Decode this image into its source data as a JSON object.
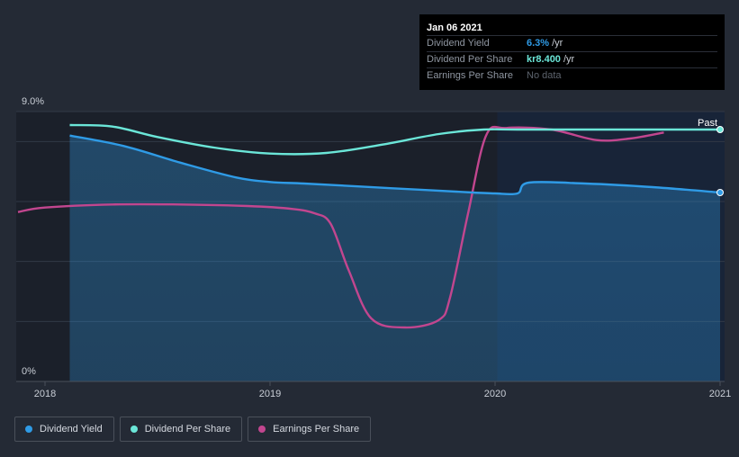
{
  "chart_data": {
    "type": "line",
    "y_axis": {
      "top_label": "9.0%",
      "bottom_label": "0%",
      "ylim": [
        0,
        9.0
      ]
    },
    "x_axis": {
      "tick_labels": [
        "2018",
        "2019",
        "2020",
        "2021"
      ],
      "xlim": [
        2017.88,
        2021.0
      ]
    },
    "past_label": "Past",
    "past_region_start": 2020.01,
    "series": [
      {
        "name": "Dividend Yield",
        "color": "#2f9be6",
        "area": true,
        "unit": "%",
        "points": [
          [
            2018.11,
            8.2
          ],
          [
            2018.35,
            7.85
          ],
          [
            2018.6,
            7.3
          ],
          [
            2018.85,
            6.8
          ],
          [
            2019.0,
            6.65
          ],
          [
            2019.15,
            6.6
          ],
          [
            2019.4,
            6.5
          ],
          [
            2019.7,
            6.38
          ],
          [
            2019.9,
            6.3
          ],
          [
            2020.0,
            6.27
          ],
          [
            2020.1,
            6.27
          ],
          [
            2020.15,
            6.63
          ],
          [
            2020.4,
            6.6
          ],
          [
            2020.7,
            6.48
          ],
          [
            2021.0,
            6.3
          ]
        ]
      },
      {
        "name": "Dividend Per Share",
        "color": "#6be6d8",
        "area": false,
        "unit": "kr",
        "points": [
          [
            2018.11,
            8.55
          ],
          [
            2018.3,
            8.5
          ],
          [
            2018.5,
            8.15
          ],
          [
            2018.75,
            7.8
          ],
          [
            2019.0,
            7.6
          ],
          [
            2019.25,
            7.62
          ],
          [
            2019.5,
            7.9
          ],
          [
            2019.75,
            8.25
          ],
          [
            2019.95,
            8.4
          ],
          [
            2020.1,
            8.4
          ],
          [
            2020.5,
            8.4
          ],
          [
            2021.0,
            8.4
          ]
        ]
      },
      {
        "name": "Earnings Per Share",
        "color": "#c2468f",
        "area": false,
        "unit": "kr",
        "points": [
          [
            2017.88,
            5.65
          ],
          [
            2018.0,
            5.8
          ],
          [
            2018.3,
            5.9
          ],
          [
            2018.6,
            5.9
          ],
          [
            2018.9,
            5.85
          ],
          [
            2019.1,
            5.75
          ],
          [
            2019.2,
            5.6
          ],
          [
            2019.27,
            5.25
          ],
          [
            2019.35,
            3.7
          ],
          [
            2019.45,
            2.1
          ],
          [
            2019.6,
            1.8
          ],
          [
            2019.75,
            2.05
          ],
          [
            2019.8,
            2.8
          ],
          [
            2019.88,
            5.6
          ],
          [
            2019.96,
            8.2
          ],
          [
            2020.05,
            8.45
          ],
          [
            2020.25,
            8.4
          ],
          [
            2020.45,
            8.05
          ],
          [
            2020.6,
            8.1
          ],
          [
            2020.75,
            8.3
          ]
        ]
      }
    ]
  },
  "tooltip": {
    "date": "Jan 06 2021",
    "rows": [
      {
        "label": "Dividend Yield",
        "value": "6.3%",
        "unit": "/yr"
      },
      {
        "label": "Dividend Per Share",
        "value": "kr8.400",
        "unit": "/yr"
      },
      {
        "label": "Earnings Per Share",
        "value": "No data"
      }
    ]
  },
  "legend": [
    {
      "label": "Dividend Yield",
      "color": "#2f9be6"
    },
    {
      "label": "Dividend Per Share",
      "color": "#6be6d8"
    },
    {
      "label": "Earnings Per Share",
      "color": "#c2468f"
    }
  ]
}
